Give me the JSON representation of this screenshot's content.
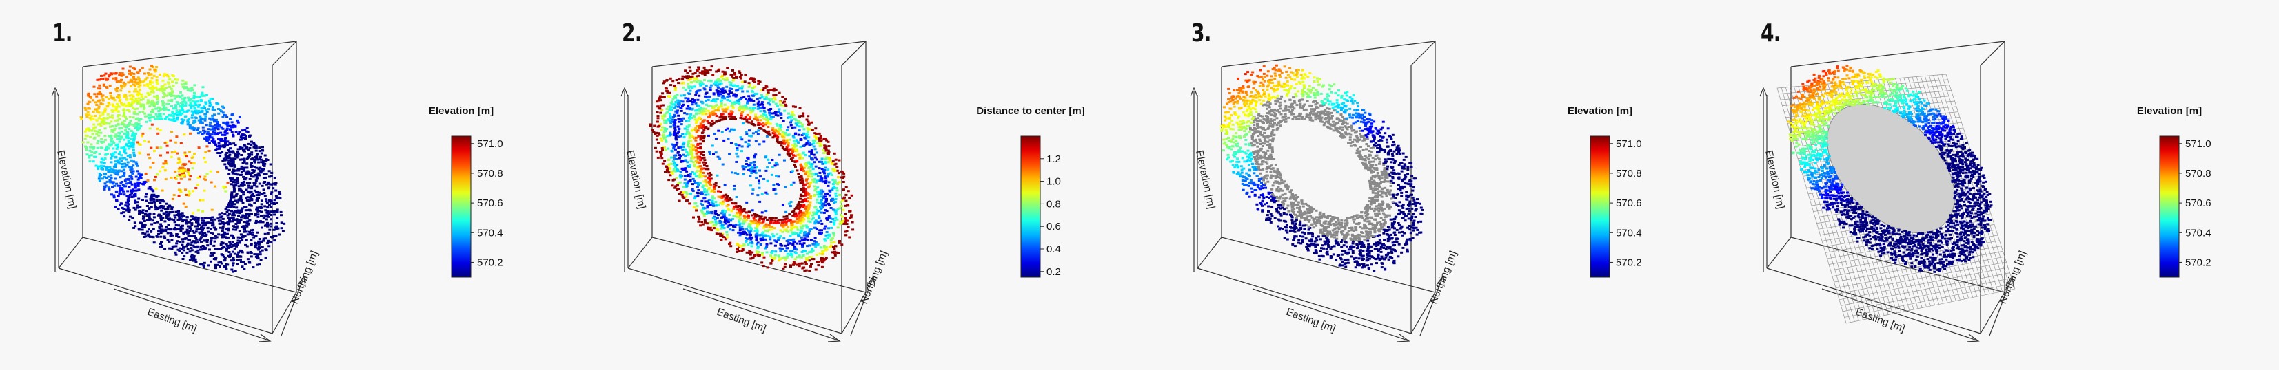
{
  "panels": [
    {
      "number": "1.",
      "style": "colored",
      "colorbar": {
        "title": "Elevation [m]",
        "min": 570.1,
        "max": 571.05,
        "ticks": [
          "571.0",
          "570.8",
          "570.6",
          "570.4",
          "570.2"
        ]
      },
      "axes": {
        "x": "Easting [m]",
        "y": "Northing [m]",
        "z": "Elevation [m]"
      }
    },
    {
      "number": "2.",
      "style": "distance",
      "colorbar": {
        "title": "Distance to center [m]",
        "min": 0.15,
        "max": 1.4,
        "ticks": [
          "1.2",
          "1.0",
          "0.8",
          "0.6",
          "0.4",
          "0.2"
        ]
      },
      "axes": {
        "x": "Easting [m]",
        "y": "Northing [m]",
        "z": "Elevation [m]"
      }
    },
    {
      "number": "3.",
      "style": "colored-gray-interior",
      "colorbar": {
        "title": "Elevation [m]",
        "min": 570.1,
        "max": 571.05,
        "ticks": [
          "571.0",
          "570.8",
          "570.6",
          "570.4",
          "570.2"
        ]
      },
      "axes": {
        "x": "Easting [m]",
        "y": "Northing [m]",
        "z": "Elevation [m]"
      }
    },
    {
      "number": "4.",
      "style": "colored-mesh",
      "colorbar": {
        "title": "Elevation [m]",
        "min": 570.1,
        "max": 571.05,
        "ticks": [
          "571.0",
          "570.8",
          "570.6",
          "570.4",
          "570.2"
        ]
      },
      "axes": {
        "x": "Easting [m]",
        "y": "Northing [m]",
        "z": "Elevation [m]"
      }
    }
  ],
  "chart_data": [
    {
      "type": "scatter",
      "subtype": "3d-point-cloud",
      "title": "1.",
      "xlabel": "Easting [m]",
      "ylabel": "Northing [m]",
      "zlabel": "Elevation [m]",
      "colorbar_label": "Elevation [m]",
      "color_range": [
        570.1,
        571.05
      ],
      "colorbar_ticks": [
        571.0,
        570.8,
        570.6,
        570.4,
        570.2
      ],
      "colormap": "jet"
    },
    {
      "type": "scatter",
      "subtype": "3d-point-cloud",
      "title": "2.",
      "xlabel": "Easting [m]",
      "ylabel": "Northing [m]",
      "zlabel": "Elevation [m]",
      "colorbar_label": "Distance to center [m]",
      "color_range": [
        0.15,
        1.4
      ],
      "colorbar_ticks": [
        1.2,
        1.0,
        0.8,
        0.6,
        0.4,
        0.2
      ],
      "colormap": "jet"
    },
    {
      "type": "scatter",
      "subtype": "3d-point-cloud",
      "title": "3.",
      "xlabel": "Easting [m]",
      "ylabel": "Northing [m]",
      "zlabel": "Elevation [m]",
      "colorbar_label": "Elevation [m]",
      "color_range": [
        570.1,
        571.05
      ],
      "colorbar_ticks": [
        571.0,
        570.8,
        570.6,
        570.4,
        570.2
      ],
      "colormap": "jet"
    },
    {
      "type": "scatter",
      "subtype": "3d-point-cloud-with-fitted-surface",
      "title": "4.",
      "xlabel": "Easting [m]",
      "ylabel": "Northing [m]",
      "zlabel": "Elevation [m]",
      "colorbar_label": "Elevation [m]",
      "color_range": [
        570.1,
        571.05
      ],
      "colorbar_ticks": [
        571.0,
        570.8,
        570.6,
        570.4,
        570.2
      ],
      "colormap": "jet"
    }
  ]
}
